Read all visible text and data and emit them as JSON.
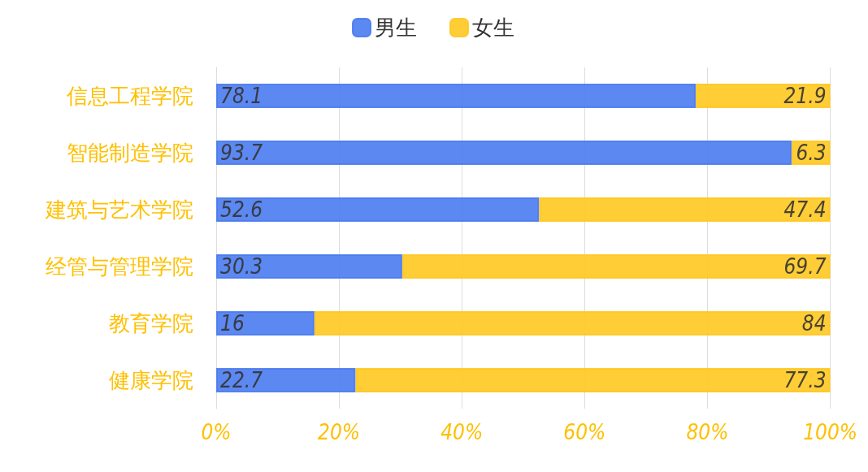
{
  "chart_data": {
    "type": "bar",
    "orientation": "horizontal",
    "stacked": true,
    "data_labels": true,
    "grid": "x",
    "legend": "top",
    "categories": [
      "信息工程学院",
      "智能制造学院",
      "建筑与艺术学院",
      "经管与管理学院",
      "教育学院",
      "健康学院"
    ],
    "series": [
      {
        "name": "男生",
        "color": "#4a7bf0",
        "values": [
          78.1,
          93.7,
          52.6,
          30.3,
          16,
          22.7
        ]
      },
      {
        "name": "女生",
        "color": "#ffc820",
        "values": [
          21.9,
          6.3,
          47.4,
          69.7,
          84,
          77.3
        ]
      }
    ],
    "xlim": [
      0,
      100
    ],
    "xticks": [
      {
        "value": 0,
        "label": "0%"
      },
      {
        "value": 20,
        "label": "20%"
      },
      {
        "value": 40,
        "label": "40%"
      },
      {
        "value": 60,
        "label": "60%"
      },
      {
        "value": 80,
        "label": "80%"
      },
      {
        "value": 100,
        "label": "100%"
      }
    ]
  }
}
